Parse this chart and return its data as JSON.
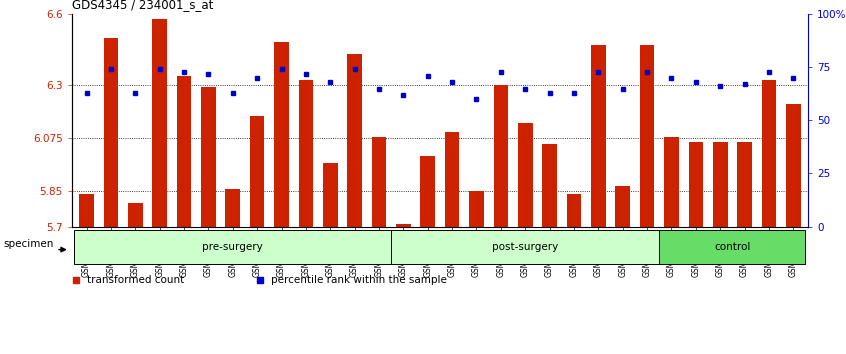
{
  "title": "GDS4345 / 234001_s_at",
  "samples": [
    "GSM842012",
    "GSM842013",
    "GSM842014",
    "GSM842015",
    "GSM842016",
    "GSM842017",
    "GSM842018",
    "GSM842019",
    "GSM842020",
    "GSM842021",
    "GSM842022",
    "GSM842023",
    "GSM842024",
    "GSM842025",
    "GSM842026",
    "GSM842027",
    "GSM842028",
    "GSM842029",
    "GSM842030",
    "GSM842031",
    "GSM842032",
    "GSM842033",
    "GSM842034",
    "GSM842035",
    "GSM842036",
    "GSM842037",
    "GSM842038",
    "GSM842039",
    "GSM842040",
    "GSM842041"
  ],
  "bar_values": [
    5.84,
    6.5,
    5.8,
    6.58,
    6.34,
    6.29,
    5.86,
    6.17,
    6.48,
    6.32,
    5.97,
    6.43,
    6.08,
    5.71,
    6.0,
    6.1,
    5.85,
    6.3,
    6.14,
    6.05,
    5.84,
    6.47,
    5.87,
    6.47,
    6.08,
    6.06,
    6.06,
    6.06,
    6.32,
    6.22
  ],
  "percentile_values": [
    63,
    74,
    63,
    74,
    73,
    72,
    63,
    70,
    74,
    72,
    68,
    74,
    65,
    62,
    71,
    68,
    60,
    73,
    65,
    63,
    63,
    73,
    65,
    73,
    70,
    68,
    66,
    67,
    73,
    70
  ],
  "groups": [
    {
      "label": "pre-surgery",
      "start": 0,
      "end": 13,
      "color": "#CCFFCC"
    },
    {
      "label": "post-surgery",
      "start": 13,
      "end": 24,
      "color": "#CCFFCC"
    },
    {
      "label": "control",
      "start": 24,
      "end": 30,
      "color": "#66DD66"
    }
  ],
  "ylim": [
    5.7,
    6.6
  ],
  "yticks": [
    5.7,
    5.85,
    6.075,
    6.3,
    6.6
  ],
  "ytick_labels": [
    "5.7",
    "5.85",
    "6.075",
    "6.3",
    "6.6"
  ],
  "right_yticks": [
    0,
    25,
    50,
    75,
    100
  ],
  "right_ytick_labels": [
    "0",
    "25",
    "50",
    "75",
    "100%"
  ],
  "bar_color": "#CC2200",
  "dot_color": "#0000CC",
  "bar_bottom": 5.7,
  "grid_lines": [
    5.85,
    6.075,
    6.3
  ],
  "left_axis_color": "#CC2200",
  "right_axis_color": "#0000CC",
  "legend_items": [
    {
      "label": "transformed count",
      "color": "#CC2200"
    },
    {
      "label": "percentile rank within the sample",
      "color": "#0000CC"
    }
  ]
}
